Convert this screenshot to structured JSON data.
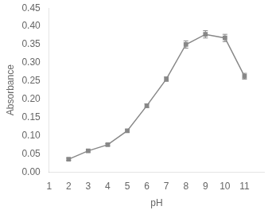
{
  "chart_data": {
    "type": "line",
    "x": [
      2,
      3,
      4,
      5,
      6,
      7,
      8,
      9,
      10,
      11
    ],
    "values": [
      0.035,
      0.058,
      0.075,
      0.113,
      0.182,
      0.255,
      0.35,
      0.378,
      0.368,
      0.263
    ],
    "yerr": [
      0.003,
      0.003,
      0.003,
      0.004,
      0.005,
      0.006,
      0.01,
      0.01,
      0.01,
      0.008
    ],
    "xlabel": "pH",
    "ylabel": "Absorbance",
    "xlim": [
      1,
      12
    ],
    "ylim": [
      0,
      0.45
    ],
    "xticks": [
      1,
      2,
      3,
      4,
      5,
      6,
      7,
      8,
      9,
      10,
      11
    ],
    "yticks": [
      {
        "value": 0,
        "label": "0.00"
      },
      0.05,
      {
        "value": 0.1,
        "label": "0.10"
      },
      0.15,
      {
        "value": 0.2,
        "label": "0.20"
      },
      0.25,
      {
        "value": 0.3,
        "label": "0.30"
      },
      0.35,
      {
        "value": 0.4,
        "label": "0.40"
      },
      0.45
    ],
    "grid": false,
    "marker": "square",
    "line_style": "solid",
    "color": "#888888"
  }
}
